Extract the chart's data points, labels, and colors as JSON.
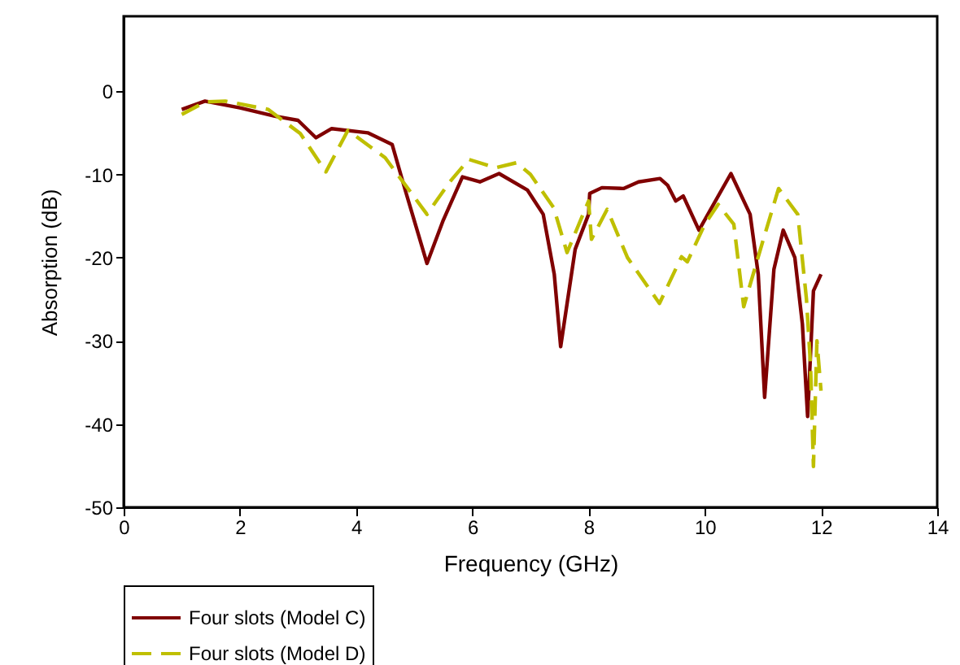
{
  "chart_data": {
    "type": "line",
    "xlabel": "Frequency (GHz)",
    "ylabel": "Absorption (dB)",
    "xlim": [
      0,
      14
    ],
    "xticks": [
      0,
      2,
      4,
      6,
      8,
      10,
      12,
      14
    ],
    "ylim": [
      -50,
      9
    ],
    "yticks": [
      -50,
      -40,
      -30,
      -20,
      -10,
      0
    ],
    "grid": false,
    "legend": "bottom left",
    "marker": "none",
    "series": [
      {
        "name": "Four slots (Model C)",
        "color": "#800000",
        "line_style": "solid",
        "x": [
          1.0,
          1.4,
          2.0,
          2.6,
          3.0,
          3.31,
          3.58,
          4.2,
          4.62,
          4.85,
          5.22,
          5.5,
          5.83,
          6.13,
          6.46,
          6.95,
          7.22,
          7.41,
          7.52,
          7.77,
          8.0,
          8.02,
          8.23,
          8.6,
          8.86,
          9.23,
          9.36,
          9.5,
          9.63,
          9.9,
          10.45,
          10.78,
          10.92,
          11.03,
          11.19,
          11.35,
          11.55,
          11.68,
          11.77,
          11.87,
          12.0
        ],
        "values": [
          -2.2,
          -1.2,
          -2.0,
          -3.0,
          -3.5,
          -5.6,
          -4.5,
          -5.0,
          -6.4,
          -12.0,
          -20.7,
          -15.5,
          -10.3,
          -10.9,
          -9.9,
          -11.9,
          -14.8,
          -22.0,
          -30.7,
          -19.0,
          -14.8,
          -12.3,
          -11.6,
          -11.7,
          -10.9,
          -10.5,
          -11.3,
          -13.2,
          -12.6,
          -16.7,
          -9.9,
          -14.8,
          -22.0,
          -36.8,
          -21.4,
          -16.7,
          -20.0,
          -28.0,
          -39.1,
          -24.0,
          -22.0
        ]
      },
      {
        "name": "Four slots (Model D)",
        "color": "#bfbf00",
        "line_style": "dashed",
        "x": [
          1.0,
          1.4,
          1.75,
          2.49,
          3.04,
          3.48,
          3.86,
          4.5,
          5.22,
          5.6,
          5.94,
          6.4,
          6.76,
          7.0,
          7.4,
          7.63,
          8.0,
          8.05,
          8.32,
          8.67,
          9.22,
          9.6,
          9.7,
          10.0,
          10.23,
          10.5,
          10.67,
          11.0,
          11.27,
          11.6,
          11.75,
          11.82,
          11.87,
          11.93,
          12.0
        ],
        "values": [
          -2.8,
          -1.3,
          -1.2,
          -2.2,
          -5.1,
          -9.7,
          -4.7,
          -8.0,
          -14.8,
          -11.0,
          -8.2,
          -9.2,
          -8.6,
          -10.0,
          -14.0,
          -19.4,
          -13.2,
          -17.8,
          -14.2,
          -20.0,
          -25.5,
          -19.9,
          -20.5,
          -16.0,
          -13.6,
          -16.0,
          -25.9,
          -18.0,
          -11.7,
          -14.8,
          -25.0,
          -33.0,
          -45.1,
          -30.0,
          -36.0
        ]
      }
    ]
  }
}
